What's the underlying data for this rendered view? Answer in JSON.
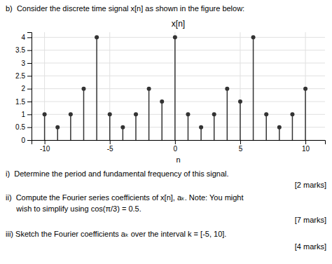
{
  "chart_data": {
    "type": "stem",
    "title": "x[n]",
    "xlabel": "n",
    "x": [
      -10,
      -9,
      -8,
      -7,
      -6,
      -5,
      -4,
      -3,
      -2,
      -1,
      0,
      1,
      2,
      3,
      4,
      5,
      6,
      7,
      8,
      9,
      10
    ],
    "values": [
      1,
      0.5,
      1,
      2,
      4,
      1,
      0.5,
      1,
      2,
      1.5,
      4,
      1,
      0.5,
      1,
      2,
      1.5,
      4,
      1,
      0.5,
      1,
      2
    ],
    "color": "#333333",
    "xlim": [
      -11,
      11.5
    ],
    "ylim": [
      0,
      4.2
    ],
    "xticks": [
      -10,
      -5,
      0,
      5,
      10
    ],
    "yticks": [
      0,
      0.5,
      1,
      1.5,
      2,
      2.5,
      3,
      3.5,
      4
    ],
    "grid": true,
    "annotations": [
      "b)  Consider the discrete time signal x[n] as shown in the figure below:",
      "i)  Determine the period and fundamental frequency of this signal.",
      "[2 marks]",
      "ii)  Compute the Fourier series coefficients of x[n], aₖ. Note: You might",
      "     wish to simplify using cos(π/3) = 0.5.",
      "[7 marks]",
      "iii) Sketch the Fourier coefficients aₖ over the interval k = [-5, 10].",
      "[4 marks]"
    ]
  }
}
